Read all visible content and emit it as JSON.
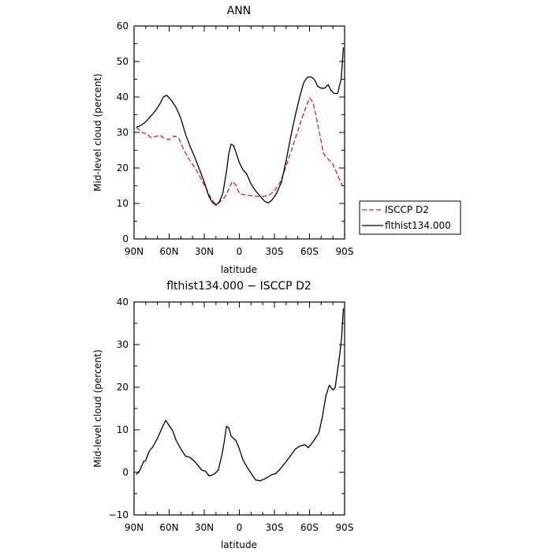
{
  "chart_data": [
    {
      "type": "line",
      "title": "ANN",
      "xlabel": "latitude",
      "ylabel": "Mid-level cloud (percent)",
      "xlim": [
        90,
        -90
      ],
      "ylim": [
        0,
        60
      ],
      "xticks": [
        90,
        60,
        30,
        0,
        -30,
        -60,
        -90
      ],
      "xtick_labels": [
        "90N",
        "60N",
        "30N",
        "0",
        "30S",
        "60S",
        "90S"
      ],
      "yticks": [
        0,
        10,
        20,
        30,
        40,
        50,
        60
      ],
      "ytick_labels": [
        "0",
        "10",
        "20",
        "30",
        "40",
        "50",
        "60"
      ],
      "legend_position": "outside-right",
      "series": [
        {
          "name": "ISCCP D2",
          "color": "#e8191c",
          "dash": "dashed",
          "x": [
            88,
            85,
            82,
            79,
            76,
            72,
            68,
            64,
            60,
            56,
            52,
            48,
            44,
            40,
            36,
            32,
            28,
            24,
            21,
            18,
            15,
            12,
            9,
            6,
            3,
            0,
            -3,
            -6,
            -10,
            -15,
            -20,
            -25,
            -30,
            -35,
            -40,
            -45,
            -50,
            -55,
            -58,
            -60,
            -63,
            -66,
            -69,
            -72,
            -76,
            -80,
            -84,
            -88
          ],
          "y": [
            31.5,
            30.5,
            29.8,
            29.7,
            28.6,
            28.8,
            29.3,
            28.3,
            28,
            29,
            28.5,
            25.5,
            23,
            21,
            19,
            16.5,
            14,
            11.3,
            10,
            10,
            11,
            12,
            14,
            16.2,
            15.3,
            12.8,
            12.5,
            12.4,
            12.2,
            12,
            12,
            12.3,
            13.5,
            16,
            20.5,
            25.5,
            30.5,
            35.5,
            38,
            39.7,
            38.5,
            34,
            29,
            24,
            22.5,
            21,
            18,
            15
          ]
        },
        {
          "name": "flthist134.000",
          "color": "#000000",
          "dash": "solid",
          "x": [
            88,
            84,
            80,
            76,
            72,
            68,
            65,
            62,
            58,
            54,
            50,
            46,
            42,
            38,
            34,
            30,
            26,
            23,
            20,
            17,
            14,
            11,
            9,
            7,
            5,
            3,
            0,
            -3,
            -6,
            -10,
            -14,
            -18,
            -22,
            -25,
            -28,
            -32,
            -36,
            -40,
            -44,
            -48,
            -52,
            -55,
            -58,
            -61,
            -64,
            -67,
            -70,
            -73,
            -76,
            -78,
            -81,
            -84,
            -87,
            -89
          ],
          "y": [
            31.5,
            32,
            33,
            34.5,
            36,
            38,
            40,
            40.5,
            39,
            37,
            34,
            29.5,
            26,
            23,
            19.5,
            16,
            12,
            10.3,
            9.5,
            10.5,
            13,
            19,
            24,
            26.7,
            26.3,
            24.5,
            21.5,
            19.5,
            18.5,
            15.5,
            13.5,
            12,
            10.5,
            10.2,
            11,
            13,
            16,
            22,
            29,
            35,
            40.5,
            44,
            45.5,
            45.7,
            45,
            43,
            42.5,
            42.5,
            43.5,
            42,
            41,
            41,
            45,
            54
          ]
        }
      ]
    },
    {
      "type": "line",
      "title": "flthist134.000 − ISCCP D2",
      "xlabel": "latitude",
      "ylabel": "Mid-level cloud (percent)",
      "xlim": [
        90,
        -90
      ],
      "ylim": [
        -10,
        40
      ],
      "xticks": [
        90,
        60,
        30,
        0,
        -30,
        -60,
        -90
      ],
      "xtick_labels": [
        "90N",
        "60N",
        "30N",
        "0",
        "30S",
        "60S",
        "90S"
      ],
      "yticks": [
        -10,
        0,
        10,
        20,
        30,
        40
      ],
      "ytick_labels": [
        "−10",
        "0",
        "10",
        "20",
        "30",
        "40"
      ],
      "series": [
        {
          "color": "#000000",
          "dash": "solid",
          "x": [
            88,
            85,
            82,
            80,
            77,
            74,
            70,
            66,
            63,
            60,
            57,
            54,
            50,
            46,
            42,
            38,
            35,
            32,
            29,
            26,
            24,
            21,
            18,
            15,
            13,
            11,
            9,
            7,
            5,
            3,
            0,
            -3,
            -6,
            -10,
            -14,
            -18,
            -20,
            -22,
            -25,
            -28,
            -31,
            -34,
            -37,
            -40,
            -44,
            -48,
            -52,
            -56,
            -59,
            -62,
            -65,
            -68,
            -71,
            -74,
            -77,
            -80,
            -82,
            -84,
            -86,
            -87.5,
            -89
          ],
          "y": [
            -0.5,
            0.5,
            2.5,
            2.8,
            5,
            6,
            8,
            10.5,
            12.2,
            11,
            9.8,
            7.5,
            5.5,
            3.8,
            3.5,
            2.5,
            1.5,
            0.5,
            0.3,
            -0.8,
            -0.7,
            -0.3,
            0.5,
            4,
            7,
            10.8,
            10.5,
            8.5,
            8,
            7.5,
            5.5,
            3,
            1.5,
            -0.2,
            -1.8,
            -2,
            -1.7,
            -1.5,
            -1,
            -0.5,
            -0.3,
            0.5,
            1.5,
            2.5,
            4,
            5.5,
            6.2,
            6.5,
            5.8,
            6.8,
            8,
            9.3,
            13,
            18,
            20.5,
            19.3,
            20,
            24,
            28,
            32,
            38.5
          ]
        }
      ]
    }
  ]
}
